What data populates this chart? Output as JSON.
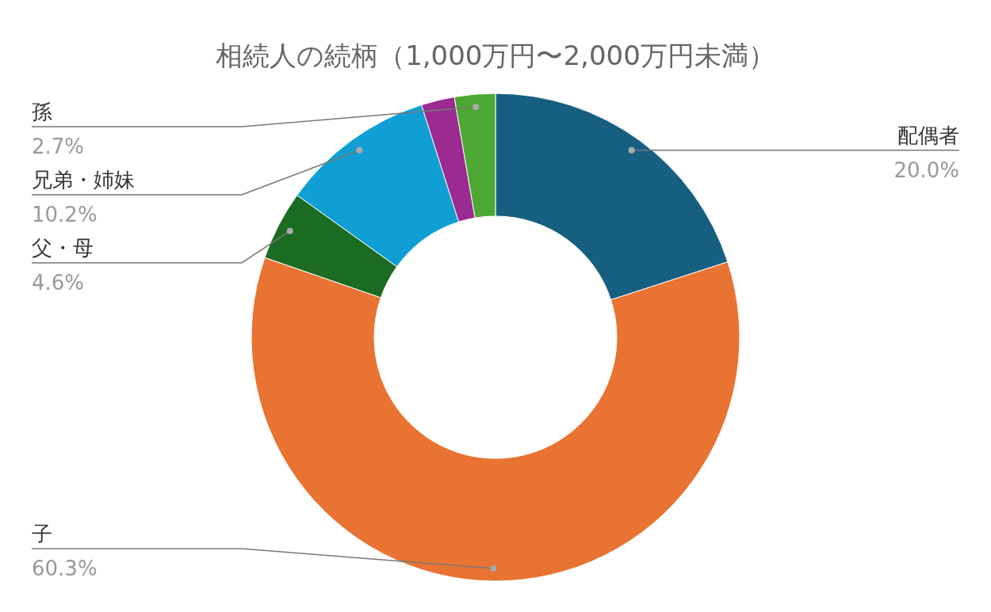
{
  "chart_data": {
    "type": "donut",
    "title": "相続人の続柄（1,000万円〜2,000万円未満）",
    "categories": [
      "配偶者",
      "子",
      "父・母",
      "兄弟・姉妹",
      null,
      "孫"
    ],
    "values": [
      20.0,
      60.3,
      4.6,
      10.2,
      2.2,
      2.7
    ],
    "colors": [
      "#175f80",
      "#e87332",
      "#1c6b22",
      "#0f9fd4",
      "#9b2a91",
      "#4ca832"
    ],
    "value_labels": [
      "20.0%",
      "60.3%",
      "4.6%",
      "10.2%",
      null,
      "2.7%"
    ]
  }
}
